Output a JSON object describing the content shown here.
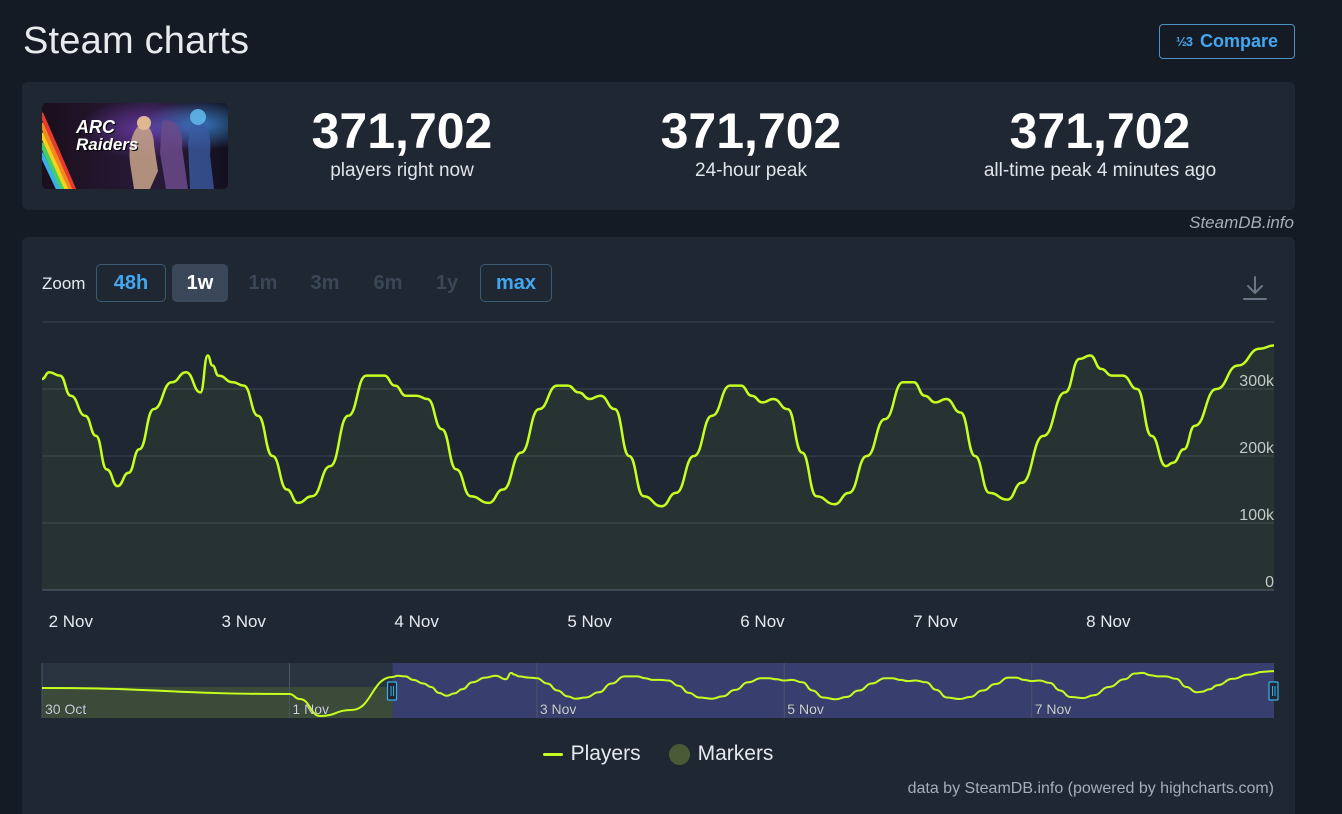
{
  "header": {
    "title": "Steam charts",
    "compare_label": "Compare",
    "compare_icon": "½3"
  },
  "stats": {
    "game_logo_text_1": "ARC",
    "game_logo_text_2": "Raiders",
    "current": {
      "value": "371,702",
      "label": "players right now"
    },
    "peak_24h": {
      "value": "371,702",
      "label": "24-hour peak"
    },
    "peak_all": {
      "value": "371,702",
      "label": "all-time peak 4 minutes ago"
    }
  },
  "credit_top": "SteamDB.info",
  "zoom": {
    "label": "Zoom",
    "buttons": [
      {
        "label": "48h",
        "state": "outlined"
      },
      {
        "label": "1w",
        "state": "selected"
      },
      {
        "label": "1m",
        "state": "disabled"
      },
      {
        "label": "3m",
        "state": "disabled"
      },
      {
        "label": "6m",
        "state": "disabled"
      },
      {
        "label": "1y",
        "state": "disabled"
      },
      {
        "label": "max",
        "state": "outlined"
      }
    ]
  },
  "legend": {
    "players": "Players",
    "markers": "Markers"
  },
  "credit_bottom": "data by SteamDB.info (powered by highcharts.com)",
  "colors": {
    "line": "#c6ff1f",
    "accent": "#43a7f0",
    "panel": "#1f2733",
    "navigator_selection": "#3b4175"
  },
  "chart_data": {
    "type": "line",
    "title": "",
    "xlabel": "",
    "ylabel": "",
    "ylim": [
      0,
      400000
    ],
    "xlim": [
      "2025-11-01T20:00",
      "2025-11-08T23:00"
    ],
    "y_ticks": [
      {
        "value": 0,
        "label": "0"
      },
      {
        "value": 100000,
        "label": "100k"
      },
      {
        "value": 200000,
        "label": "200k"
      },
      {
        "value": 300000,
        "label": "300k"
      }
    ],
    "x_ticks": [
      {
        "value": "2025-11-02T00:00",
        "label": "2 Nov"
      },
      {
        "value": "2025-11-03T00:00",
        "label": "3 Nov"
      },
      {
        "value": "2025-11-04T00:00",
        "label": "4 Nov"
      },
      {
        "value": "2025-11-05T00:00",
        "label": "5 Nov"
      },
      {
        "value": "2025-11-06T00:00",
        "label": "6 Nov"
      },
      {
        "value": "2025-11-07T00:00",
        "label": "7 Nov"
      },
      {
        "value": "2025-11-08T00:00",
        "label": "8 Nov"
      }
    ],
    "grid": true,
    "legend": "bottom-center",
    "series": [
      {
        "name": "Players",
        "x": [
          "2025-11-01T20:00",
          "2025-11-01T21:00",
          "2025-11-01T22:30",
          "2025-11-02T00:00",
          "2025-11-02T02:00",
          "2025-11-02T03:30",
          "2025-11-02T05:00",
          "2025-11-02T06:30",
          "2025-11-02T08:00",
          "2025-11-02T09:30",
          "2025-11-02T11:30",
          "2025-11-02T14:00",
          "2025-11-02T16:00",
          "2025-11-02T18:00",
          "2025-11-02T19:00",
          "2025-11-02T19:40",
          "2025-11-02T20:30",
          "2025-11-02T22:30",
          "2025-11-03T00:00",
          "2025-11-03T02:00",
          "2025-11-03T04:00",
          "2025-11-03T06:00",
          "2025-11-03T07:30",
          "2025-11-03T09:30",
          "2025-11-03T12:00",
          "2025-11-03T14:30",
          "2025-11-03T17:00",
          "2025-11-03T19:30",
          "2025-11-03T21:00",
          "2025-11-03T22:30",
          "2025-11-04T00:00",
          "2025-11-04T01:30",
          "2025-11-04T03:30",
          "2025-11-04T05:30",
          "2025-11-04T07:30",
          "2025-11-04T10:00",
          "2025-11-04T12:00",
          "2025-11-04T14:30",
          "2025-11-04T17:00",
          "2025-11-04T19:30",
          "2025-11-04T21:00",
          "2025-11-04T22:30",
          "2025-11-05T00:00",
          "2025-11-05T01:30",
          "2025-11-05T03:30",
          "2025-11-05T05:30",
          "2025-11-05T07:30",
          "2025-11-05T10:00",
          "2025-11-05T12:00",
          "2025-11-05T14:30",
          "2025-11-05T17:00",
          "2025-11-05T19:30",
          "2025-11-05T21:00",
          "2025-11-05T22:30",
          "2025-11-06T00:00",
          "2025-11-06T01:30",
          "2025-11-06T03:30",
          "2025-11-06T05:30",
          "2025-11-06T07:30",
          "2025-11-06T10:00",
          "2025-11-06T12:00",
          "2025-11-06T14:30",
          "2025-11-06T17:00",
          "2025-11-06T19:30",
          "2025-11-06T21:00",
          "2025-11-06T22:30",
          "2025-11-07T00:00",
          "2025-11-07T01:30",
          "2025-11-07T03:30",
          "2025-11-07T05:30",
          "2025-11-07T07:30",
          "2025-11-07T10:00",
          "2025-11-07T12:00",
          "2025-11-07T15:00",
          "2025-11-07T18:00",
          "2025-11-07T20:00",
          "2025-11-07T21:30",
          "2025-11-07T23:00",
          "2025-11-08T00:30",
          "2025-11-08T02:00",
          "2025-11-08T04:00",
          "2025-11-08T06:00",
          "2025-11-08T08:00",
          "2025-11-08T09:00",
          "2025-11-08T10:30",
          "2025-11-08T12:00",
          "2025-11-08T15:00",
          "2025-11-08T18:00",
          "2025-11-08T21:00",
          "2025-11-08T23:00"
        ],
        "y": [
          315000,
          325000,
          320000,
          290000,
          260000,
          230000,
          180000,
          155000,
          175000,
          210000,
          270000,
          310000,
          325000,
          295000,
          350000,
          335000,
          320000,
          310000,
          305000,
          260000,
          200000,
          150000,
          130000,
          140000,
          185000,
          260000,
          320000,
          320000,
          305000,
          290000,
          290000,
          285000,
          240000,
          180000,
          140000,
          130000,
          150000,
          205000,
          270000,
          305000,
          305000,
          295000,
          285000,
          290000,
          270000,
          200000,
          140000,
          125000,
          145000,
          200000,
          260000,
          305000,
          305000,
          290000,
          280000,
          285000,
          270000,
          205000,
          140000,
          128000,
          145000,
          200000,
          255000,
          310000,
          310000,
          290000,
          280000,
          285000,
          265000,
          200000,
          145000,
          135000,
          160000,
          230000,
          295000,
          345000,
          350000,
          330000,
          320000,
          320000,
          300000,
          230000,
          185000,
          190000,
          210000,
          245000,
          300000,
          335000,
          360000,
          365000
        ]
      }
    ],
    "navigator": {
      "x_labels": [
        {
          "value": "2025-10-30T00:00",
          "label": "30 Oct"
        },
        {
          "value": "2025-11-01T00:00",
          "label": "1 Nov"
        },
        {
          "value": "2025-11-03T00:00",
          "label": "3 Nov"
        },
        {
          "value": "2025-11-05T00:00",
          "label": "5 Nov"
        },
        {
          "value": "2025-11-07T00:00",
          "label": "7 Nov"
        }
      ],
      "range": [
        "2025-10-30T00:00",
        "2025-11-08T23:00"
      ],
      "selection": [
        "2025-11-01T20:00",
        "2025-11-08T23:00"
      ],
      "markers_until": "2025-11-01T20:00"
    }
  }
}
